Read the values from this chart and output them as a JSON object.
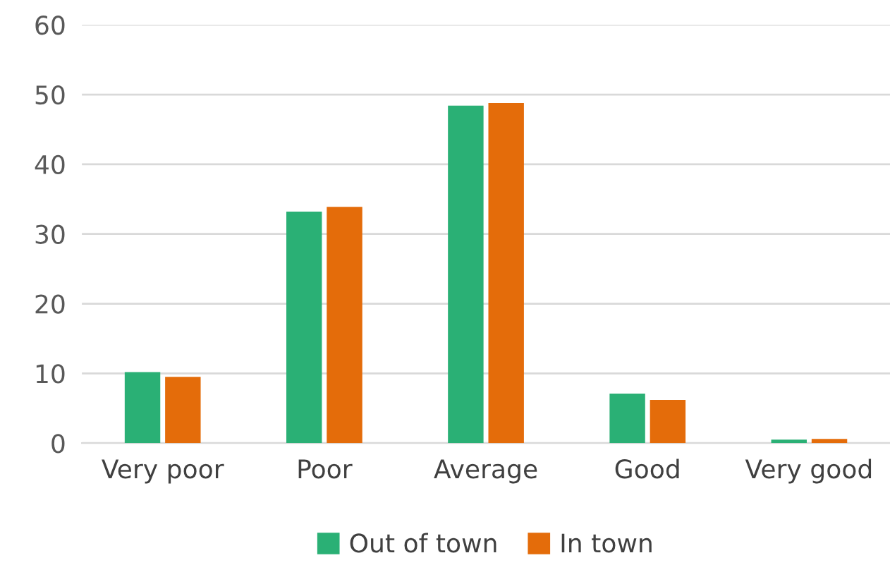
{
  "chart_data": {
    "type": "bar",
    "categories": [
      "Very poor",
      "Poor",
      "Average",
      "Good",
      "Very good"
    ],
    "series": [
      {
        "name": "Out of town",
        "color": "#2ab075",
        "values": [
          10.2,
          33.2,
          48.4,
          7.1,
          0.5
        ]
      },
      {
        "name": "In town",
        "color": "#e46c0a",
        "values": [
          9.5,
          33.9,
          48.8,
          6.2,
          0.6
        ]
      }
    ],
    "ylim": [
      0,
      60
    ],
    "yticks": [
      0,
      10,
      20,
      30,
      40,
      50,
      60
    ],
    "grid": "y",
    "legend": "bottom"
  }
}
